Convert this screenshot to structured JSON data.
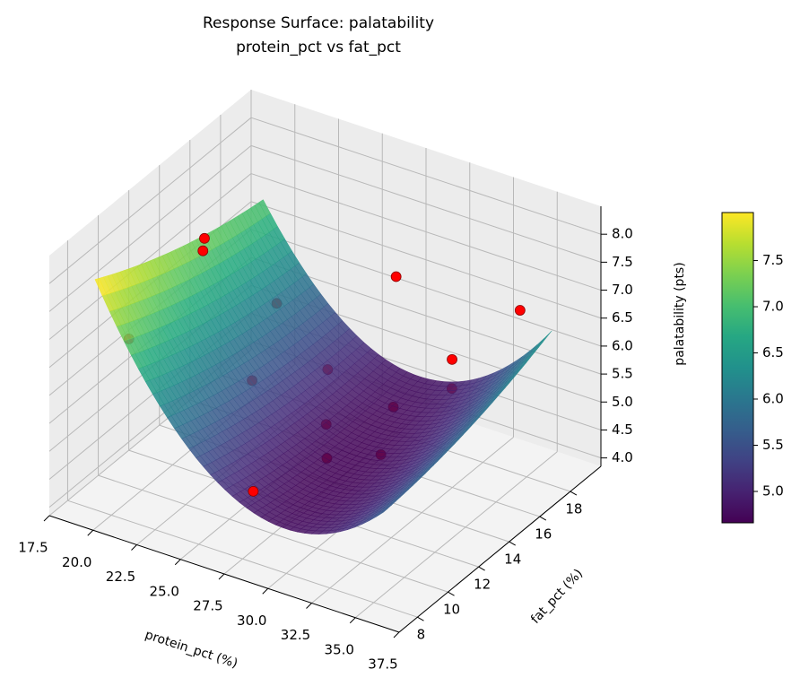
{
  "chart_data": {
    "type": "surface3d",
    "title": [
      "Response Surface: palatability",
      "protein_pct vs fat_pct"
    ],
    "xlabel": "protein_pct (%)",
    "ylabel": "fat_pct (%)",
    "zlabel": "palatability (pts)",
    "xlim": [
      17.5,
      37.5
    ],
    "ylim": [
      6.8,
      20
    ],
    "zlim": [
      3.85,
      8.5
    ],
    "xticks": [
      "17.5",
      "20.0",
      "22.5",
      "25.0",
      "27.5",
      "30.0",
      "32.5",
      "35.0",
      "37.5"
    ],
    "yticks": [
      "8",
      "10",
      "12",
      "14",
      "16",
      "18"
    ],
    "zticks": [
      "4.0",
      "4.5",
      "5.0",
      "5.5",
      "6.0",
      "6.5",
      "7.0",
      "7.5",
      "8.0"
    ],
    "grid": true,
    "colormap": "viridis",
    "surface": {
      "x_range": [
        19.5,
        36
      ],
      "y_range": [
        7.5,
        18.5
      ],
      "approx_model": "z = 4.7 + 0.028*(x-29.5)^2 + 0.005*(y-12.5)^2 + 0.01*(x-29.5)*(y-12.5)"
    },
    "colorbar": {
      "range": [
        4.66,
        8.02
      ],
      "ticks": [
        "5.0",
        "5.5",
        "6.0",
        "6.5",
        "7.0",
        "7.5"
      ]
    },
    "points": [
      {
        "x": 21.3,
        "y": 12.6,
        "z": 7.9,
        "occluded": false
      },
      {
        "x": 21.3,
        "y": 12.5,
        "z": 7.7,
        "occluded": false
      },
      {
        "x": 28.5,
        "y": 16.9,
        "z": 7.0,
        "occluded": false
      },
      {
        "x": 34.1,
        "y": 18.6,
        "z": 6.6,
        "occluded": false
      },
      {
        "x": 31.0,
        "y": 17.7,
        "z": 5.6,
        "occluded": false
      },
      {
        "x": 27.5,
        "y": 8.7,
        "z": 4.9,
        "occluded": false
      },
      {
        "x": 19.6,
        "y": 9.6,
        "z": 6.6,
        "occluded": true
      },
      {
        "x": 22.2,
        "y": 16.3,
        "z": 6.0,
        "occluded": true
      },
      {
        "x": 22.8,
        "y": 14.0,
        "z": 5.2,
        "occluded": true
      },
      {
        "x": 24.5,
        "y": 17.0,
        "z": 4.9,
        "occluded": true
      },
      {
        "x": 26.6,
        "y": 14.5,
        "z": 4.7,
        "occluded": true
      },
      {
        "x": 28.3,
        "y": 12.6,
        "z": 4.7,
        "occluded": true
      },
      {
        "x": 29.3,
        "y": 15.8,
        "z": 5.0,
        "occluded": true
      },
      {
        "x": 30.6,
        "y": 13.5,
        "z": 4.8,
        "occluded": true
      },
      {
        "x": 31.6,
        "y": 17.0,
        "z": 5.3,
        "occluded": true
      }
    ],
    "colors": {
      "point": "#ff0000",
      "point_edge": "#8b0000",
      "pane_wall": "#ececec",
      "pane_floor": "#f3f3f3",
      "grid": "#b8b8b8"
    }
  }
}
